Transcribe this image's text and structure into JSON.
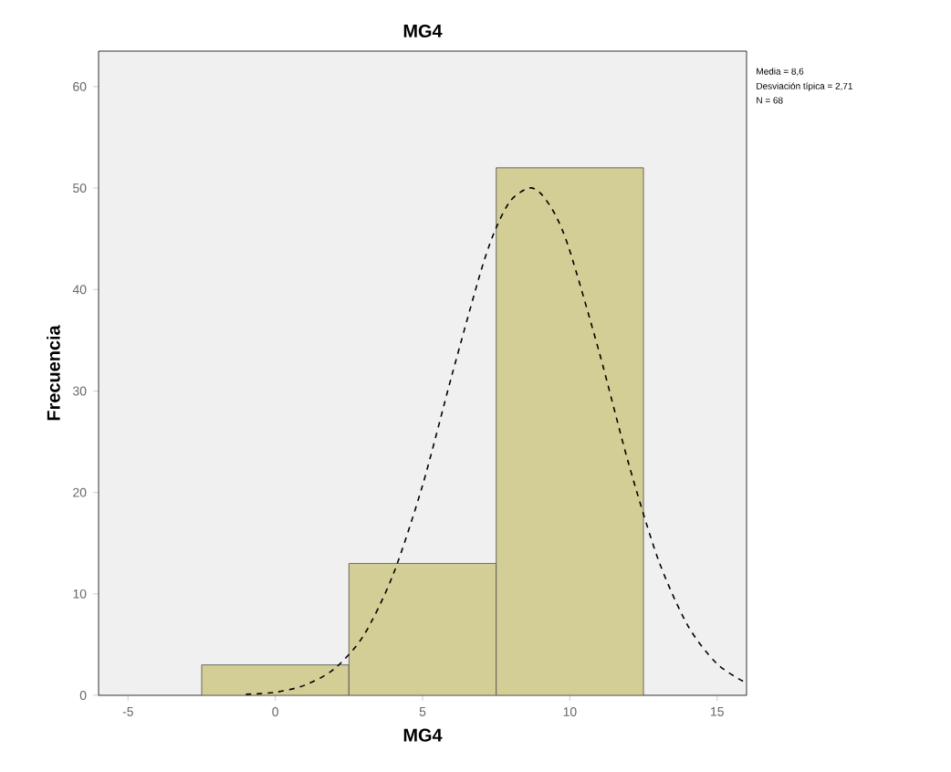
{
  "chart_data": {
    "type": "histogram",
    "title": "MG4",
    "xlabel": "MG4",
    "ylabel": "Frecuencia",
    "bins": [
      -2.5,
      2.5,
      7.5,
      12.5
    ],
    "values": [
      3,
      13,
      52
    ],
    "color": "#d3ce95",
    "xlim": [
      -6,
      16
    ],
    "ylim": [
      0,
      63.5
    ],
    "xticks": [
      -5,
      0,
      5,
      10,
      15
    ],
    "yticks": [
      0,
      10,
      20,
      30,
      40,
      50,
      60
    ],
    "annotations": [
      "Media = 8,6",
      "Desviación típica = 2,71",
      "N = 68"
    ],
    "series": [
      {
        "type": "line",
        "color": "#000000",
        "line_style": "dashed",
        "x": [
          -1,
          0,
          1,
          2,
          3,
          4,
          5,
          6,
          7,
          7.5,
          8,
          8.6,
          9,
          9.5,
          10,
          11,
          12,
          13,
          14,
          15,
          16
        ],
        "values": [
          0.1,
          0.3,
          1.0,
          2.6,
          5.9,
          11.9,
          20.7,
          31.6,
          42.0,
          46.1,
          48.8,
          50.0,
          49.5,
          47.4,
          43.8,
          33.8,
          22.8,
          13.4,
          6.9,
          3.1,
          1.2
        ]
      }
    ]
  }
}
